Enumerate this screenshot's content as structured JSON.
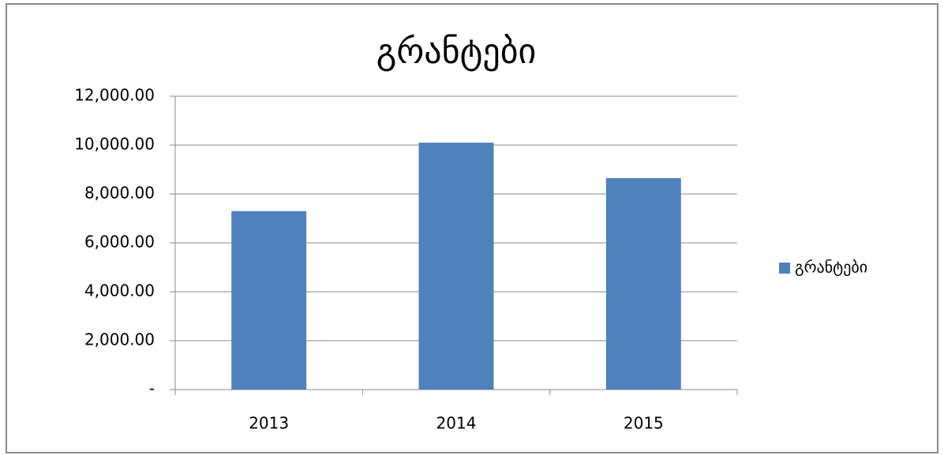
{
  "chart_data": {
    "type": "bar",
    "title": "გრანტები",
    "categories": [
      "2013",
      "2014",
      "2015"
    ],
    "series": [
      {
        "name": "გრანტები",
        "color": "#4f81bd",
        "values": [
          7300,
          10100,
          8650
        ]
      }
    ],
    "ylim": [
      0,
      12000
    ],
    "yticks": [
      {
        "value": 0,
        "label": "-"
      },
      {
        "value": 2000,
        "label": "2,000.00"
      },
      {
        "value": 4000,
        "label": "4,000.00"
      },
      {
        "value": 6000,
        "label": "6,000.00"
      },
      {
        "value": 8000,
        "label": "8,000.00"
      },
      {
        "value": 10000,
        "label": "10,000.00"
      },
      {
        "value": 12000,
        "label": "12,000.00"
      }
    ],
    "grid": true,
    "legend": "right"
  }
}
